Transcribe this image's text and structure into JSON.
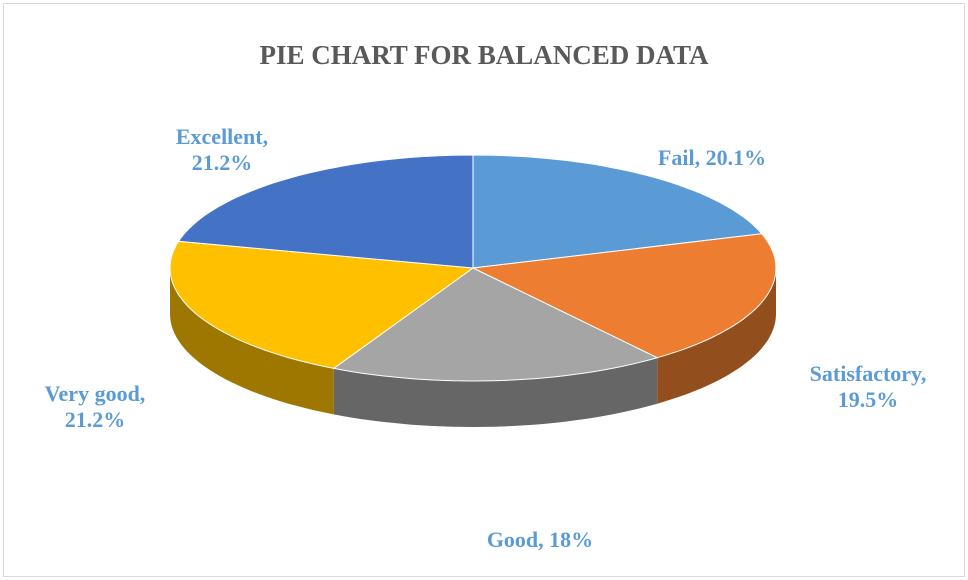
{
  "chart_data": {
    "type": "pie",
    "title": "PIE CHART FOR BALANCED DATA",
    "values": [
      20.1,
      19.5,
      18,
      21.2,
      21.2
    ],
    "value_labels": [
      "Fail, 20.1%",
      "Satisfactory, 19.5%",
      "Good, 18%",
      "Very good, 21.2%",
      "Excellent, 21.2%"
    ],
    "colors": [
      "#5b9bd5",
      "#ed7d31",
      "#a5a5a5",
      "#ffc000",
      "#4472c4"
    ]
  }
}
